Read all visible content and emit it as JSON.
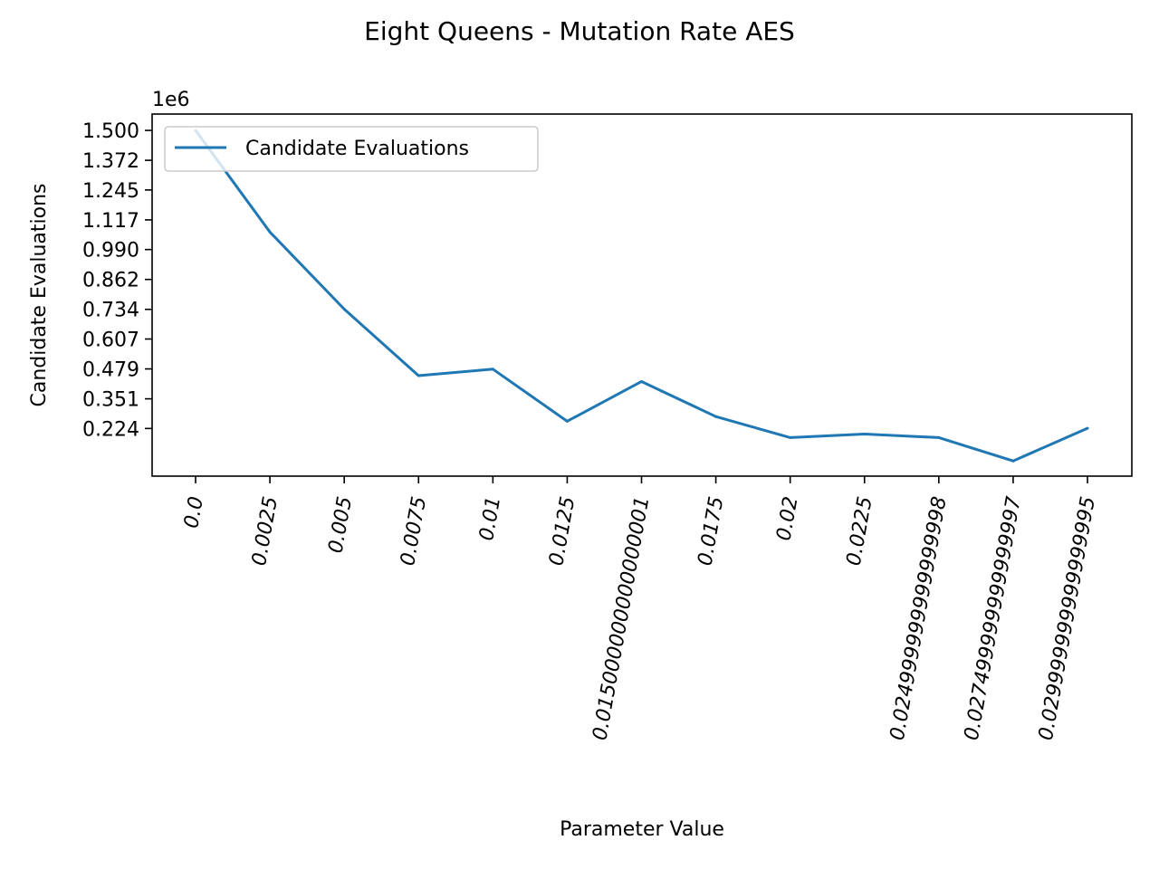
{
  "chart_data": {
    "type": "line",
    "title": "Eight Queens - Mutation Rate AES",
    "xlabel": "Parameter Value",
    "ylabel": "Candidate Evaluations",
    "y_offset_label": "1e6",
    "y_scale": 1000000,
    "categories": [
      "0.0",
      "0.0025",
      "0.005",
      "0.0075",
      "0.01",
      "0.0125",
      "0.015000000000000001",
      "0.0175",
      "0.02",
      "0.0225",
      "0.024999999999999998",
      "0.027499999999999997",
      "0.029999999999999995"
    ],
    "y_ticks": [
      "0.224",
      "0.351",
      "0.479",
      "0.607",
      "0.734",
      "0.862",
      "0.990",
      "1.117",
      "1.245",
      "1.372",
      "1.500"
    ],
    "ylim": [
      0.02,
      1.57
    ],
    "series": [
      {
        "name": "Candidate Evaluations",
        "color": "#1f77b4",
        "values": [
          1500000,
          1065000,
          735000,
          450000,
          478000,
          255000,
          425000,
          275000,
          185000,
          200000,
          185000,
          85000,
          225000
        ]
      }
    ],
    "legend_position": "upper-left",
    "grid": false
  }
}
